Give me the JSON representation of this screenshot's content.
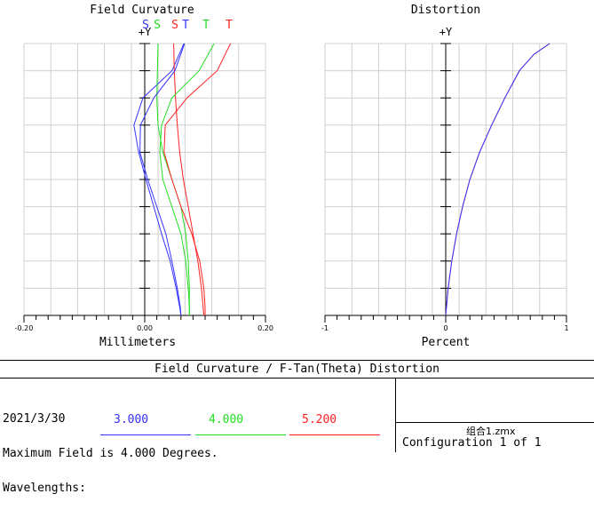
{
  "chart_data": [
    {
      "type": "line",
      "title": "Field Curvature",
      "y_axis_label": "+Y",
      "xlabel": "Millimeters",
      "xlim": [
        -0.2,
        0.2
      ],
      "ylim": [
        0,
        1
      ],
      "xtick_labels": [
        "-0.20",
        "0.00",
        "0.20"
      ],
      "grid": true,
      "legend": [
        "S",
        "S",
        "S",
        "T",
        "T",
        "T"
      ],
      "series": [
        {
          "name": "S",
          "color": "#3333ff",
          "x": [
            0.065,
            0.045,
            -0.003,
            -0.018,
            -0.01,
            0.002,
            0.015,
            0.028,
            0.042,
            0.052,
            0.058,
            0.06
          ],
          "y": [
            1.0,
            0.9,
            0.8,
            0.7,
            0.6,
            0.5,
            0.4,
            0.3,
            0.2,
            0.1,
            0.03,
            0.0
          ]
        },
        {
          "name": "S",
          "color": "#22dd22",
          "x": [
            0.022,
            0.021,
            0.02,
            0.022,
            0.03,
            0.045,
            0.06,
            0.068,
            0.072,
            0.074,
            0.074
          ],
          "y": [
            1.0,
            0.9,
            0.8,
            0.7,
            0.6,
            0.5,
            0.4,
            0.3,
            0.2,
            0.1,
            0.0
          ]
        },
        {
          "name": "S",
          "color": "#ff2222",
          "x": [
            0.048,
            0.049,
            0.051,
            0.054,
            0.058,
            0.064,
            0.072,
            0.08,
            0.088,
            0.094,
            0.098
          ],
          "y": [
            1.0,
            0.9,
            0.8,
            0.7,
            0.6,
            0.5,
            0.4,
            0.3,
            0.2,
            0.1,
            0.0
          ]
        },
        {
          "name": "T",
          "color": "#3333ff",
          "x": [
            0.066,
            0.05,
            0.015,
            -0.007,
            -0.008,
            0.005,
            0.02,
            0.035,
            0.045,
            0.054,
            0.059,
            0.06
          ],
          "y": [
            1.0,
            0.9,
            0.8,
            0.7,
            0.6,
            0.5,
            0.4,
            0.3,
            0.2,
            0.1,
            0.03,
            0.0
          ]
        },
        {
          "name": "T",
          "color": "#22dd22",
          "x": [
            0.115,
            0.09,
            0.045,
            0.028,
            0.025,
            0.03,
            0.045,
            0.06,
            0.068,
            0.072,
            0.074,
            0.074
          ],
          "y": [
            1.0,
            0.9,
            0.8,
            0.7,
            0.6,
            0.5,
            0.4,
            0.3,
            0.2,
            0.1,
            0.03,
            0.0
          ]
        },
        {
          "name": "T",
          "color": "#ff2222",
          "x": [
            0.142,
            0.12,
            0.07,
            0.034,
            0.032,
            0.045,
            0.06,
            0.078,
            0.091,
            0.098,
            0.1,
            0.1
          ],
          "y": [
            1.0,
            0.9,
            0.8,
            0.7,
            0.6,
            0.5,
            0.4,
            0.3,
            0.2,
            0.1,
            0.03,
            0.0
          ]
        }
      ]
    },
    {
      "type": "line",
      "title": "Distortion",
      "y_axis_label": "+Y",
      "xlabel": "Percent",
      "xlim": [
        -1,
        1
      ],
      "ylim": [
        0,
        1
      ],
      "xtick_labels": [
        "-1",
        "0",
        "1"
      ],
      "grid": true,
      "series": [
        {
          "color": "#ff2222",
          "x": [
            0.0,
            0.02,
            0.05,
            0.09,
            0.14,
            0.2,
            0.28,
            0.38,
            0.49,
            0.61,
            0.73,
            0.86
          ],
          "y": [
            0.0,
            0.1,
            0.2,
            0.3,
            0.4,
            0.5,
            0.6,
            0.7,
            0.8,
            0.9,
            0.96,
            1.0
          ]
        },
        {
          "color": "#3333ff",
          "x": [
            0.0,
            0.02,
            0.05,
            0.09,
            0.14,
            0.2,
            0.28,
            0.38,
            0.49,
            0.61,
            0.73,
            0.86
          ],
          "y": [
            0.0,
            0.1,
            0.2,
            0.3,
            0.4,
            0.5,
            0.6,
            0.7,
            0.8,
            0.9,
            0.96,
            1.0
          ]
        }
      ]
    }
  ],
  "footer": {
    "title": "Field Curvature / F-Tan(Theta) Distortion",
    "date": "2021/3/30",
    "max_field": "Maximum Field is 4.000 Degrees.",
    "wavelengths_label": "Wavelengths:",
    "wavelengths": [
      {
        "value": "3.000",
        "color": "#3333ff"
      },
      {
        "value": "4.000",
        "color": "#22dd22"
      },
      {
        "value": "5.200",
        "color": "#ff2222"
      }
    ],
    "filename": "组合1.zmx",
    "configuration": "Configuration 1 of 1"
  }
}
